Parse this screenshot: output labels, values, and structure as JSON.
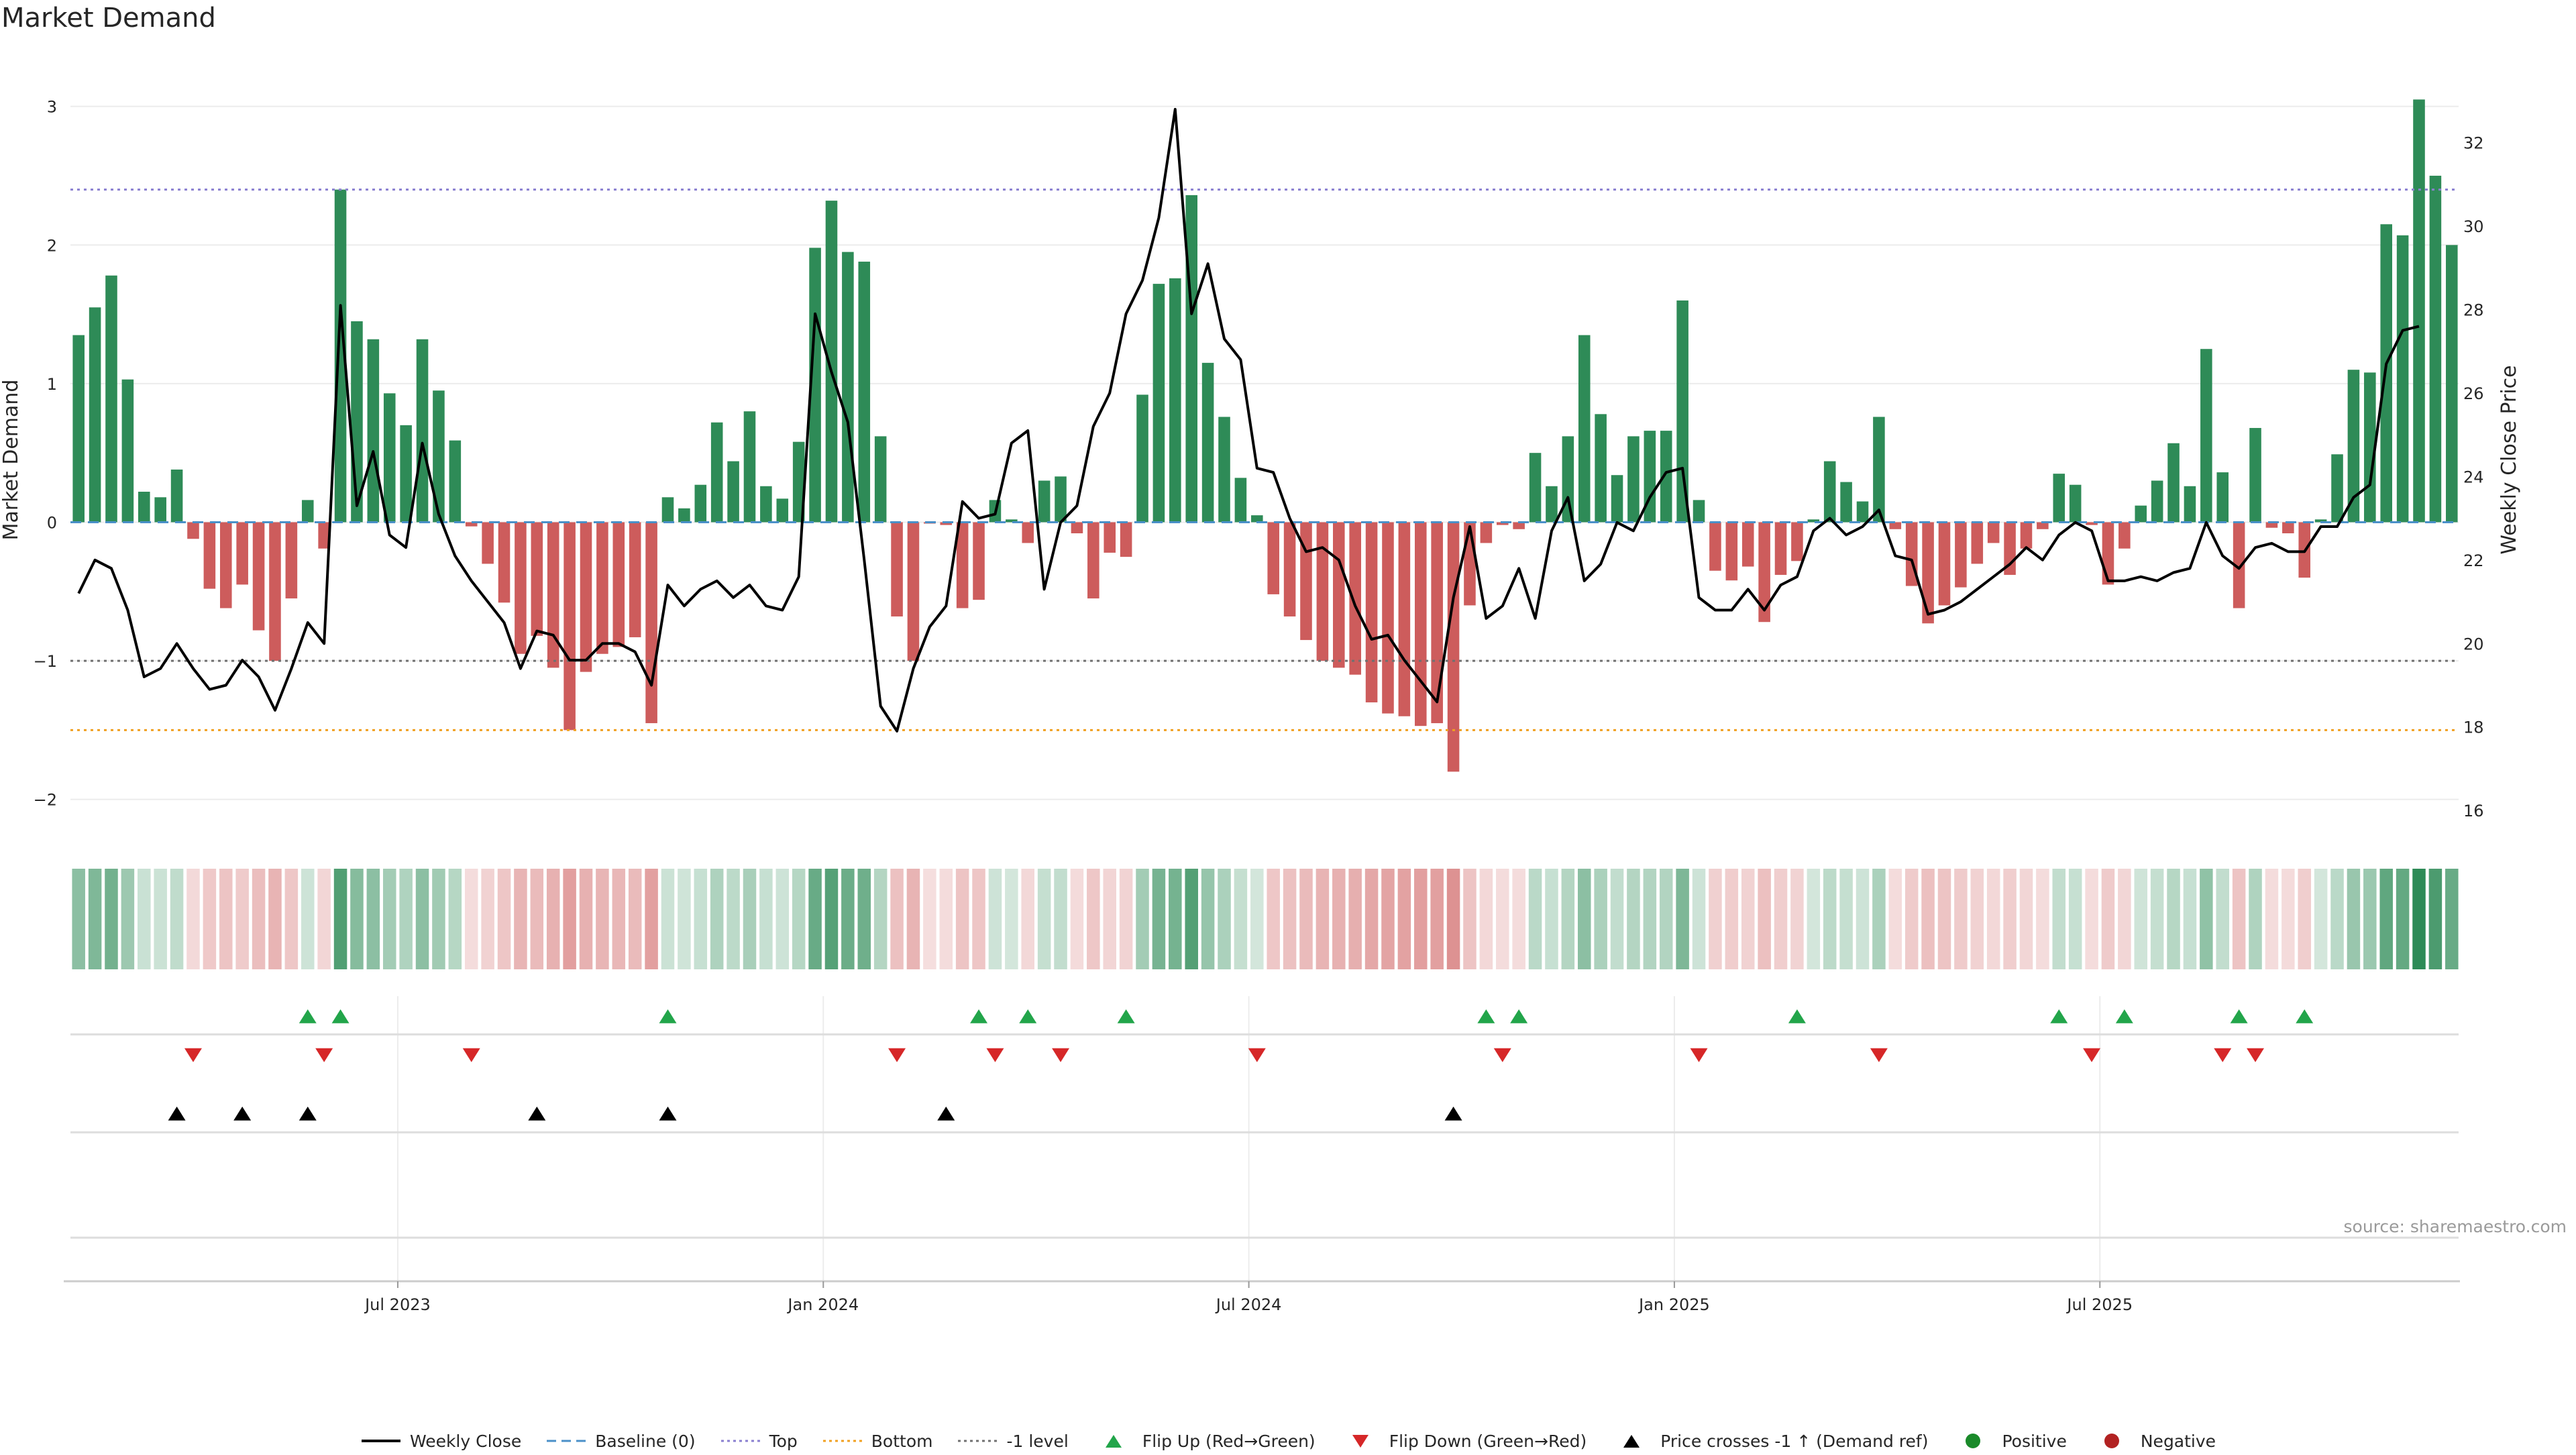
{
  "title": "Market Demand",
  "source": "source: sharemaestro.com",
  "colors": {
    "pos": "#2e8b57",
    "neg": "#cd5c5c",
    "upTri": "#22a54a",
    "downTri": "#d62728",
    "black": "#000000",
    "top": "#8a7fd0",
    "bottom": "#f0a020",
    "minus1": "#707070",
    "baseline": "#4a90c8"
  },
  "chart_data": {
    "type": "bar",
    "title": "Market Demand",
    "ylabel": "Market Demand",
    "y2label": "Weekly Close Price",
    "ylim": [
      -2.2,
      3.1
    ],
    "y2lim": [
      15.6,
      33.2
    ],
    "yticks": [
      -2,
      -1,
      0,
      1,
      2,
      3
    ],
    "y2ticks": [
      16,
      18,
      20,
      22,
      24,
      26,
      28,
      30,
      32
    ],
    "xticks": [
      "Jul 2023",
      "Jan 2024",
      "Jul 2024",
      "Jan 2025",
      "Jul 2025"
    ],
    "xtick_index": [
      20,
      46,
      72,
      98,
      124
    ],
    "levels": {
      "top": 2.4,
      "bottom": -1.5,
      "minus1": -1.0,
      "baseline": 0
    },
    "demand": [
      1.35,
      1.55,
      1.78,
      1.03,
      0.22,
      0.18,
      0.38,
      -0.12,
      -0.48,
      -0.62,
      -0.45,
      -0.78,
      -1.0,
      -0.55,
      0.16,
      -0.19,
      2.4,
      1.45,
      1.32,
      0.93,
      0.7,
      1.32,
      0.95,
      0.59,
      -0.03,
      -0.3,
      -0.58,
      -0.95,
      -0.82,
      -1.05,
      -1.5,
      -1.08,
      -0.95,
      -0.9,
      -0.83,
      -1.45,
      0.18,
      0.1,
      0.27,
      0.72,
      0.44,
      0.8,
      0.26,
      0.17,
      0.58,
      1.98,
      2.32,
      1.95,
      1.88,
      0.62,
      -0.68,
      -1.0,
      -0.01,
      -0.02,
      -0.62,
      -0.56,
      0.16,
      0.02,
      -0.15,
      0.3,
      0.33,
      -0.08,
      -0.55,
      -0.22,
      -0.25,
      0.92,
      1.72,
      1.76,
      2.36,
      1.15,
      0.76,
      0.32,
      0.05,
      -0.52,
      -0.68,
      -0.85,
      -1.0,
      -1.05,
      -1.1,
      -1.3,
      -1.38,
      -1.4,
      -1.47,
      -1.45,
      -1.8,
      -0.6,
      -0.15,
      -0.02,
      -0.05,
      0.5,
      0.26,
      0.62,
      1.35,
      0.78,
      0.34,
      0.62,
      0.66,
      0.66,
      1.6,
      0.16,
      -0.35,
      -0.42,
      -0.32,
      -0.72,
      -0.38,
      -0.28,
      0.02,
      0.44,
      0.29,
      0.15,
      0.76,
      -0.05,
      -0.46,
      -0.73,
      -0.6,
      -0.47,
      -0.3,
      -0.15,
      -0.38,
      -0.19,
      -0.05,
      0.35,
      0.27,
      -0.02,
      -0.45,
      -0.19,
      0.12,
      0.3,
      0.57,
      0.26,
      1.25,
      0.36,
      -0.62,
      0.68,
      -0.04,
      -0.08,
      -0.4,
      0.02,
      0.49,
      1.1,
      1.08,
      2.15,
      2.07,
      3.05,
      2.5,
      2.0
    ],
    "close": [
      21.2,
      22.0,
      21.8,
      20.8,
      19.2,
      19.4,
      20.0,
      19.4,
      18.9,
      19.0,
      19.6,
      19.2,
      18.4,
      19.4,
      20.5,
      20.0,
      28.1,
      23.3,
      24.6,
      22.6,
      22.3,
      24.8,
      23.1,
      22.1,
      21.5,
      21.0,
      20.5,
      19.4,
      20.3,
      20.2,
      19.6,
      19.6,
      20.0,
      20.0,
      19.8,
      19.0,
      21.4,
      20.9,
      21.3,
      21.5,
      21.1,
      21.4,
      20.9,
      20.8,
      21.6,
      27.9,
      26.5,
      25.3,
      22.0,
      18.5,
      17.9,
      19.4,
      20.4,
      20.9,
      23.4,
      23.0,
      23.1,
      24.8,
      25.1,
      21.3,
      22.9,
      23.3,
      25.2,
      26.0,
      27.9,
      28.7,
      30.2,
      32.8,
      27.9,
      29.1,
      27.3,
      26.8,
      24.2,
      24.1,
      23.0,
      22.2,
      22.3,
      22.0,
      20.9,
      20.1,
      20.2,
      19.6,
      19.1,
      18.6,
      21.1,
      22.8,
      20.6,
      20.9,
      21.8,
      20.6,
      22.7,
      23.5,
      21.5,
      21.9,
      22.9,
      22.7,
      23.5,
      24.1,
      24.2,
      21.1,
      20.8,
      20.8,
      21.3,
      20.8,
      21.4,
      21.6,
      22.7,
      23.0,
      22.6,
      22.8,
      23.2,
      22.1,
      22.0,
      20.7,
      20.8,
      21.0,
      21.3,
      21.6,
      21.9,
      22.3,
      22.0,
      22.6,
      22.9,
      22.7,
      21.5,
      21.5,
      21.6,
      21.5,
      21.7,
      21.8,
      22.9,
      22.1,
      21.8,
      22.3,
      22.4,
      22.2,
      22.2,
      22.8,
      22.8,
      23.5,
      23.8,
      26.7,
      27.5,
      27.6
    ],
    "flip_up": [
      14,
      16,
      36,
      55,
      58,
      64,
      86,
      88,
      105,
      121,
      125,
      132,
      136
    ],
    "flip_down": [
      7,
      15,
      24,
      50,
      56,
      60,
      72,
      87,
      99,
      110,
      123,
      131,
      133
    ],
    "price_cross": [
      6,
      10,
      14,
      28,
      36,
      53,
      84
    ]
  },
  "legend": [
    {
      "label": "Weekly Close",
      "kind": "line"
    },
    {
      "label": "Baseline (0)",
      "kind": "dash-baseline"
    },
    {
      "label": "Top",
      "kind": "dot-top"
    },
    {
      "label": "Bottom",
      "kind": "dot-bottom"
    },
    {
      "label": "-1 level",
      "kind": "dot-minus1"
    },
    {
      "label": "Flip Up (Red→Green)",
      "kind": "tri-up-green"
    },
    {
      "label": "Flip Down (Green→Red)",
      "kind": "tri-down-red"
    },
    {
      "label": "Price crosses -1 ↑ (Demand ref)",
      "kind": "tri-up-black"
    },
    {
      "label": "Positive",
      "kind": "dot-pos"
    },
    {
      "label": "Negative",
      "kind": "dot-neg"
    }
  ]
}
